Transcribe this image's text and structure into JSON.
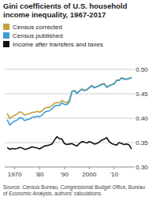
{
  "chart_data": {
    "type": "line",
    "title": "Gini coefficients of U.S. household income inequality, 1967-2017",
    "source": "Source: Census Bureau, Congressional Budget Office, Bureau of Economic Analysis, authors' calculations.",
    "x": [
      1967,
      1968,
      1969,
      1970,
      1971,
      1972,
      1973,
      1974,
      1975,
      1976,
      1977,
      1978,
      1979,
      1980,
      1981,
      1982,
      1983,
      1984,
      1985,
      1986,
      1987,
      1988,
      1989,
      1990,
      1991,
      1992,
      1993,
      1994,
      1995,
      1996,
      1997,
      1998,
      1999,
      2000,
      2001,
      2002,
      2003,
      2004,
      2005,
      2006,
      2007,
      2008,
      2009,
      2010,
      2011,
      2012,
      2013,
      2014,
      2015,
      2016,
      2017
    ],
    "series": [
      {
        "name": "Census corrected",
        "color": "#c4a13b",
        "values": [
          0.41,
          0.399,
          0.403,
          0.406,
          0.408,
          0.413,
          0.411,
          0.406,
          0.408,
          0.409,
          0.412,
          0.412,
          0.414,
          0.412,
          0.415,
          0.42,
          0.422,
          0.422,
          0.426,
          0.431,
          0.432,
          0.431,
          0.436,
          0.433,
          0.432,
          0.437,
          0.455,
          0.457,
          0.452,
          0.456,
          0.46,
          0.457,
          0.459,
          0.463,
          0.467,
          0.463,
          0.465,
          0.467,
          0.47,
          0.471,
          0.464,
          0.467,
          0.469,
          0.471,
          0.478,
          0.478,
          0.483,
          0.481,
          0.48,
          0.482,
          0.484
        ]
      },
      {
        "name": "Census published",
        "color": "#3a9fd6",
        "values": [
          0.397,
          0.386,
          0.391,
          0.394,
          0.396,
          0.401,
          0.4,
          0.395,
          0.397,
          0.398,
          0.402,
          0.402,
          0.404,
          0.403,
          0.406,
          0.412,
          0.414,
          0.415,
          0.419,
          0.425,
          0.426,
          0.426,
          0.431,
          0.428,
          0.428,
          0.433,
          0.454,
          0.456,
          0.45,
          0.455,
          0.459,
          0.456,
          0.458,
          0.462,
          0.466,
          0.462,
          0.464,
          0.466,
          0.469,
          0.47,
          0.463,
          0.466,
          0.468,
          0.47,
          0.477,
          0.477,
          0.482,
          0.48,
          0.479,
          0.481,
          0.482
        ]
      },
      {
        "name": "Income after transfers and taxes",
        "color": "#111111",
        "values": [
          0.34,
          0.336,
          0.338,
          0.337,
          0.338,
          0.34,
          0.339,
          0.336,
          0.337,
          0.339,
          0.341,
          0.34,
          0.339,
          0.337,
          0.34,
          0.343,
          0.344,
          0.345,
          0.347,
          0.355,
          0.362,
          0.358,
          0.357,
          0.348,
          0.346,
          0.347,
          0.348,
          0.345,
          0.343,
          0.348,
          0.352,
          0.351,
          0.349,
          0.352,
          0.35,
          0.347,
          0.348,
          0.351,
          0.355,
          0.357,
          0.36,
          0.352,
          0.348,
          0.346,
          0.345,
          0.35,
          0.348,
          0.346,
          0.347,
          0.345,
          0.337
        ]
      }
    ],
    "xlim": [
      1966,
      2018
    ],
    "xticks": [
      {
        "value": 1970,
        "label": "1970"
      },
      {
        "value": 1980,
        "label": "'80"
      },
      {
        "value": 1990,
        "label": "'90"
      },
      {
        "value": 2000,
        "label": "2000"
      },
      {
        "value": 2010,
        "label": "'10"
      }
    ],
    "ylim": [
      0.3,
      0.5
    ],
    "yticks": [
      {
        "value": 0.3,
        "label": "0.30"
      },
      {
        "value": 0.35,
        "label": "0.35"
      },
      {
        "value": 0.4,
        "label": "0.40"
      },
      {
        "value": 0.45,
        "label": "0.45"
      },
      {
        "value": 0.5,
        "label": "0.50"
      }
    ],
    "grid": true,
    "legend": "top-left"
  }
}
